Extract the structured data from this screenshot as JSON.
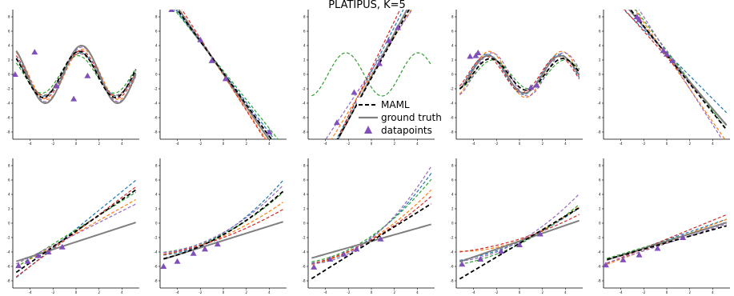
{
  "title": "PLATIPUS, K=5",
  "legend": {
    "maml": "MAML",
    "ground_truth": "ground truth",
    "datapoints": "datapoints"
  },
  "colors": {
    "maml": "#000000",
    "ground_truth": "#808080",
    "datapoints": "#8050b8",
    "samples": [
      "#1f77b4",
      "#ff7f0e",
      "#2ca02c",
      "#d62728",
      "#9467bd",
      "#8c564b",
      "#e377c2",
      "#7f7f7f",
      "#bcbd22",
      "#17becf"
    ]
  },
  "chart_data": [
    {
      "type": "line",
      "panel": "row1-col1",
      "xlim": [
        -5.5,
        5.5
      ],
      "ylim": [
        -9,
        9
      ],
      "xticks": [
        -4,
        -2,
        0,
        2,
        4
      ],
      "yticks": [
        -8,
        -6,
        -4,
        -2,
        0,
        2,
        4,
        6,
        8
      ],
      "ground_truth": {
        "kind": "sine",
        "amplitude": 4.0,
        "phase": 1.1
      },
      "maml": {
        "kind": "sine",
        "amplitude": 3.2,
        "phase": 1.3
      },
      "samples": [
        {
          "kind": "sine",
          "amplitude": 3.0,
          "phase": 1.2
        },
        {
          "kind": "sine",
          "amplitude": 3.5,
          "phase": 1.0
        },
        {
          "kind": "sine",
          "amplitude": 2.6,
          "phase": 1.4
        },
        {
          "kind": "sine",
          "amplitude": 3.3,
          "phase": 1.15
        },
        {
          "kind": "sine",
          "amplitude": 3.8,
          "phase": 1.05
        },
        {
          "kind": "sine",
          "amplitude": 2.9,
          "phase": 1.25
        }
      ],
      "points": [
        [
          -5.3,
          0.0
        ],
        [
          -3.6,
          3.1
        ],
        [
          -1.7,
          -1.6
        ],
        [
          -0.2,
          -3.4
        ],
        [
          1.0,
          -0.2
        ]
      ]
    },
    {
      "type": "line",
      "panel": "row1-col2",
      "xlim": [
        -5.5,
        5.5
      ],
      "ylim": [
        -9,
        9
      ],
      "xticks": [
        -4,
        -2,
        0,
        2,
        4
      ],
      "yticks": [
        -8,
        -6,
        -4,
        -2,
        0,
        2,
        4,
        6,
        8
      ],
      "ground_truth": {
        "kind": "line",
        "slope": -2.3,
        "intercept": 0.1
      },
      "maml": {
        "kind": "line",
        "slope": -2.2,
        "intercept": 0.2
      },
      "samples": [
        {
          "kind": "line",
          "slope": -2.1,
          "intercept": 0.3
        },
        {
          "kind": "line",
          "slope": -2.4,
          "intercept": -0.1
        },
        {
          "kind": "line",
          "slope": -2.0,
          "intercept": 0.5
        },
        {
          "kind": "line",
          "slope": -2.5,
          "intercept": 0.0
        },
        {
          "kind": "line",
          "slope": -2.2,
          "intercept": 0.1
        }
      ],
      "points": [
        [
          -2.0,
          4.8
        ],
        [
          -1.0,
          1.9
        ],
        [
          0.2,
          -0.6
        ],
        [
          4.0,
          -8.0
        ],
        [
          -4.5,
          9.0
        ]
      ]
    },
    {
      "type": "line",
      "panel": "row1-col3",
      "xlim": [
        -5.5,
        5.5
      ],
      "ylim": [
        -9,
        9
      ],
      "xticks": [
        -4,
        -2,
        0,
        2,
        4
      ],
      "yticks": [
        -8,
        -6,
        -4,
        -2,
        0,
        2,
        4,
        6,
        8
      ],
      "ground_truth": {
        "kind": "line",
        "slope": 3.0,
        "intercept": -0.3
      },
      "maml": {
        "kind": "line",
        "slope": 2.9,
        "intercept": -0.5
      },
      "samples": [
        {
          "kind": "line",
          "slope": 3.1,
          "intercept": 0.4
        },
        {
          "kind": "line",
          "slope": 2.6,
          "intercept": 0.0
        },
        {
          "kind": "sine",
          "amplitude": 3.0,
          "phase": -2.5
        },
        {
          "kind": "line",
          "slope": 3.3,
          "intercept": 0.8
        },
        {
          "kind": "line",
          "slope": 2.4,
          "intercept": 0.5
        }
      ],
      "points": [
        [
          -3.0,
          -6.7
        ],
        [
          0.7,
          1.5
        ],
        [
          1.5,
          4.7
        ],
        [
          2.3,
          6.5
        ],
        [
          -1.5,
          -2.5
        ]
      ]
    },
    {
      "type": "line",
      "panel": "row1-col4",
      "xlim": [
        -5.5,
        5.5
      ],
      "ylim": [
        -9,
        9
      ],
      "xticks": [
        -4,
        -2,
        0,
        2,
        4
      ],
      "yticks": [
        -8,
        -6,
        -4,
        -2,
        0,
        2,
        4,
        6,
        8
      ],
      "ground_truth": {
        "kind": "sine",
        "amplitude": 2.6,
        "phase": -2.0
      },
      "maml": {
        "kind": "sine",
        "amplitude": 2.2,
        "phase": -2.2
      },
      "samples": [
        {
          "kind": "sine",
          "amplitude": 2.8,
          "phase": -1.9
        },
        {
          "kind": "sine",
          "amplitude": 3.2,
          "phase": -2.1
        },
        {
          "kind": "sine",
          "amplitude": 2.0,
          "phase": -2.4
        },
        {
          "kind": "sine",
          "amplitude": 2.5,
          "phase": -1.8
        },
        {
          "kind": "sine",
          "amplitude": 3.0,
          "phase": -2.3
        }
      ],
      "points": [
        [
          -4.3,
          2.5
        ],
        [
          -3.6,
          3.0
        ],
        [
          1.0,
          -1.8
        ],
        [
          1.5,
          -1.5
        ],
        [
          -3.8,
          2.6
        ]
      ]
    },
    {
      "type": "line",
      "panel": "row1-col5",
      "xlim": [
        -5.5,
        5.5
      ],
      "ylim": [
        -9,
        9
      ],
      "xticks": [
        -4,
        -2,
        0,
        2,
        4
      ],
      "yticks": [
        -8,
        -6,
        -4,
        -2,
        0,
        2,
        4,
        6,
        8
      ],
      "ground_truth": {
        "kind": "line",
        "slope": -1.9,
        "intercept": 2.8
      },
      "maml": {
        "kind": "line",
        "slope": -2.0,
        "intercept": 2.7
      },
      "samples": [
        {
          "kind": "line",
          "slope": -1.6,
          "intercept": 3.0
        },
        {
          "kind": "line",
          "slope": -2.3,
          "intercept": 2.6
        },
        {
          "kind": "line",
          "slope": -2.1,
          "intercept": 3.3
        },
        {
          "kind": "line",
          "slope": -1.8,
          "intercept": 2.4
        },
        {
          "kind": "line",
          "slope": -2.5,
          "intercept": 3.0
        }
      ],
      "points": [
        [
          -2.4,
          7.6
        ],
        [
          0.0,
          2.8
        ],
        [
          0.5,
          1.9
        ],
        [
          -2.6,
          8.0
        ],
        [
          -0.3,
          3.3
        ]
      ]
    },
    {
      "type": "line",
      "panel": "row2-col1",
      "xlim": [
        -5.5,
        5.5
      ],
      "ylim": [
        -9,
        9
      ],
      "xticks": [
        -4,
        -2,
        0,
        2,
        4
      ],
      "yticks": [
        -8,
        -6,
        -4,
        -2,
        0,
        2,
        4,
        6,
        8
      ],
      "ground_truth": {
        "kind": "line",
        "slope": 0.52,
        "intercept": -2.6
      },
      "maml": {
        "kind": "line",
        "slope": 1.1,
        "intercept": -1.1
      },
      "samples": [
        {
          "kind": "line",
          "slope": 1.3,
          "intercept": -0.8
        },
        {
          "kind": "line",
          "slope": 0.9,
          "intercept": -1.4
        },
        {
          "kind": "line",
          "slope": 1.0,
          "intercept": -0.9
        },
        {
          "kind": "line",
          "slope": 1.2,
          "intercept": -1.2
        },
        {
          "kind": "line",
          "slope": 0.8,
          "intercept": -1.5
        }
      ],
      "points": [
        [
          -5.0,
          -5.9
        ],
        [
          -4.2,
          -5.3
        ],
        [
          -3.3,
          -4.5
        ],
        [
          -2.4,
          -4.0
        ],
        [
          -1.2,
          -3.3
        ]
      ]
    },
    {
      "type": "line",
      "panel": "row2-col2",
      "xlim": [
        -5.5,
        5.5
      ],
      "ylim": [
        -9,
        9
      ],
      "xticks": [
        -4,
        -2,
        0,
        2,
        4
      ],
      "yticks": [
        -8,
        -6,
        -4,
        -2,
        0,
        2,
        4,
        6,
        8
      ],
      "ground_truth": {
        "kind": "line",
        "slope": 0.5,
        "intercept": -2.4
      },
      "maml": {
        "kind": "curve",
        "slope": 0.9,
        "intercept": -1.6,
        "curv": 0.05
      },
      "samples": [
        {
          "kind": "curve",
          "slope": 1.0,
          "intercept": -1.4,
          "curv": 0.08
        },
        {
          "kind": "curve",
          "slope": 0.7,
          "intercept": -1.8,
          "curv": 0.04
        },
        {
          "kind": "curve",
          "slope": 0.8,
          "intercept": -1.5,
          "curv": 0.06
        },
        {
          "kind": "curve",
          "slope": 0.6,
          "intercept": -2.0,
          "curv": 0.03
        },
        {
          "kind": "curve",
          "slope": 0.9,
          "intercept": -1.3,
          "curv": 0.07
        }
      ],
      "points": [
        [
          -5.2,
          -6.0
        ],
        [
          -4.0,
          -5.3
        ],
        [
          -2.6,
          -4.2
        ],
        [
          -1.6,
          -3.6
        ],
        [
          -0.5,
          -2.9
        ]
      ]
    },
    {
      "type": "line",
      "panel": "row2-col3",
      "xlim": [
        -5.5,
        5.5
      ],
      "ylim": [
        -9,
        9
      ],
      "xticks": [
        -4,
        -2,
        0,
        2,
        4
      ],
      "yticks": [
        -8,
        -6,
        -4,
        -2,
        0,
        2,
        4,
        6,
        8
      ],
      "ground_truth": {
        "kind": "line",
        "slope": 0.45,
        "intercept": -2.5
      },
      "maml": {
        "kind": "line",
        "slope": 1.0,
        "intercept": -2.5
      },
      "samples": [
        {
          "kind": "curve",
          "slope": 1.2,
          "intercept": -2.0,
          "curv": 0.1
        },
        {
          "kind": "curve",
          "slope": 1.0,
          "intercept": -2.2,
          "curv": 0.06
        },
        {
          "kind": "curve",
          "slope": 1.1,
          "intercept": -1.8,
          "curv": 0.08
        },
        {
          "kind": "curve",
          "slope": 0.9,
          "intercept": -2.3,
          "curv": 0.05
        },
        {
          "kind": "curve",
          "slope": 1.3,
          "intercept": -2.1,
          "curv": 0.12
        }
      ],
      "points": [
        [
          -5.0,
          -6.1
        ],
        [
          -3.6,
          -5.0
        ],
        [
          -2.4,
          -4.3
        ],
        [
          -1.3,
          -3.6
        ],
        [
          0.8,
          -2.2
        ]
      ]
    },
    {
      "type": "line",
      "panel": "row2-col4",
      "xlim": [
        -5.5,
        5.5
      ],
      "ylim": [
        -9,
        9
      ],
      "xticks": [
        -4,
        -2,
        0,
        2,
        4
      ],
      "yticks": [
        -8,
        -6,
        -4,
        -2,
        0,
        2,
        4,
        6,
        8
      ],
      "ground_truth": {
        "kind": "line",
        "slope": 0.55,
        "intercept": -2.5
      },
      "maml": {
        "kind": "line",
        "slope": 0.95,
        "intercept": -2.8
      },
      "samples": [
        {
          "kind": "curve",
          "slope": 0.7,
          "intercept": -2.6,
          "curv": 0.04
        },
        {
          "kind": "curve",
          "slope": 0.6,
          "intercept": -2.4,
          "curv": 0.06
        },
        {
          "kind": "curve",
          "slope": 0.8,
          "intercept": -2.9,
          "curv": 0.05
        },
        {
          "kind": "curve",
          "slope": 0.5,
          "intercept": -2.2,
          "curv": 0.03
        },
        {
          "kind": "curve",
          "slope": 0.9,
          "intercept": -2.5,
          "curv": 0.07
        }
      ],
      "points": [
        [
          -5.0,
          -5.7
        ],
        [
          -3.4,
          -5.0
        ],
        [
          -1.6,
          -3.9
        ],
        [
          0.0,
          -3.0
        ],
        [
          1.8,
          -1.5
        ]
      ]
    },
    {
      "type": "line",
      "panel": "row2-col5",
      "xlim": [
        -5.5,
        5.5
      ],
      "ylim": [
        -9,
        9
      ],
      "xticks": [
        -4,
        -2,
        0,
        2,
        4
      ],
      "yticks": [
        -8,
        -6,
        -4,
        -2,
        0,
        2,
        4,
        6,
        8
      ],
      "ground_truth": {
        "kind": "line",
        "slope": 0.5,
        "intercept": -2.5
      },
      "maml": {
        "kind": "line",
        "slope": 0.45,
        "intercept": -2.7
      },
      "samples": [
        {
          "kind": "line",
          "slope": 0.55,
          "intercept": -2.3
        },
        {
          "kind": "line",
          "slope": 0.6,
          "intercept": -2.6
        },
        {
          "kind": "line",
          "slope": 0.48,
          "intercept": -2.4
        },
        {
          "kind": "line",
          "slope": 0.65,
          "intercept": -2.2
        },
        {
          "kind": "line",
          "slope": 0.52,
          "intercept": -2.8
        }
      ],
      "points": [
        [
          -5.3,
          -5.8
        ],
        [
          -3.8,
          -5.1
        ],
        [
          -2.4,
          -4.4
        ],
        [
          -0.8,
          -3.5
        ],
        [
          1.4,
          -2.0
        ]
      ]
    }
  ]
}
